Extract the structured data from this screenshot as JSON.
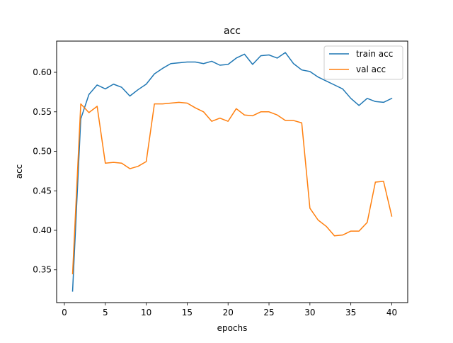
{
  "chart_data": {
    "type": "line",
    "title": "acc",
    "xlabel": "epochs",
    "ylabel": "acc",
    "xlim": [
      -0.95,
      41.95
    ],
    "ylim": [
      0.3085,
      0.6395
    ],
    "xticks": [
      0,
      5,
      10,
      15,
      20,
      25,
      30,
      35,
      40
    ],
    "xtick_labels": [
      "0",
      "5",
      "10",
      "15",
      "20",
      "25",
      "30",
      "35",
      "40"
    ],
    "yticks": [
      0.35,
      0.4,
      0.45,
      0.5,
      0.55,
      0.6
    ],
    "ytick_labels": [
      "0.35",
      "0.40",
      "0.45",
      "0.50",
      "0.55",
      "0.60"
    ],
    "grid": false,
    "legend_position": "upper right",
    "x": [
      1,
      2,
      3,
      4,
      5,
      6,
      7,
      8,
      9,
      10,
      11,
      12,
      13,
      14,
      15,
      16,
      17,
      18,
      19,
      20,
      21,
      22,
      23,
      24,
      25,
      26,
      27,
      28,
      29,
      30,
      31,
      32,
      33,
      34,
      35,
      36,
      37,
      38,
      39,
      40
    ],
    "series": [
      {
        "name": "train acc",
        "color": "#1f77b4",
        "values": [
          0.323,
          0.541,
          0.572,
          0.584,
          0.579,
          0.585,
          0.581,
          0.57,
          0.578,
          0.585,
          0.598,
          0.605,
          0.611,
          0.612,
          0.613,
          0.613,
          0.611,
          0.614,
          0.609,
          0.61,
          0.618,
          0.623,
          0.61,
          0.621,
          0.622,
          0.618,
          0.625,
          0.611,
          0.603,
          0.601,
          0.594,
          0.589,
          0.584,
          0.579,
          0.567,
          0.558,
          0.567,
          0.563,
          0.562,
          0.567
        ]
      },
      {
        "name": "val acc",
        "color": "#ff7f0e",
        "values": [
          0.345,
          0.56,
          0.549,
          0.557,
          0.485,
          0.486,
          0.485,
          0.478,
          0.481,
          0.487,
          0.56,
          0.56,
          0.561,
          0.562,
          0.561,
          0.555,
          0.55,
          0.538,
          0.542,
          0.538,
          0.554,
          0.546,
          0.545,
          0.55,
          0.55,
          0.546,
          0.539,
          0.539,
          0.536,
          0.428,
          0.413,
          0.405,
          0.393,
          0.394,
          0.399,
          0.399,
          0.41,
          0.461,
          0.462,
          0.418
        ]
      }
    ]
  }
}
